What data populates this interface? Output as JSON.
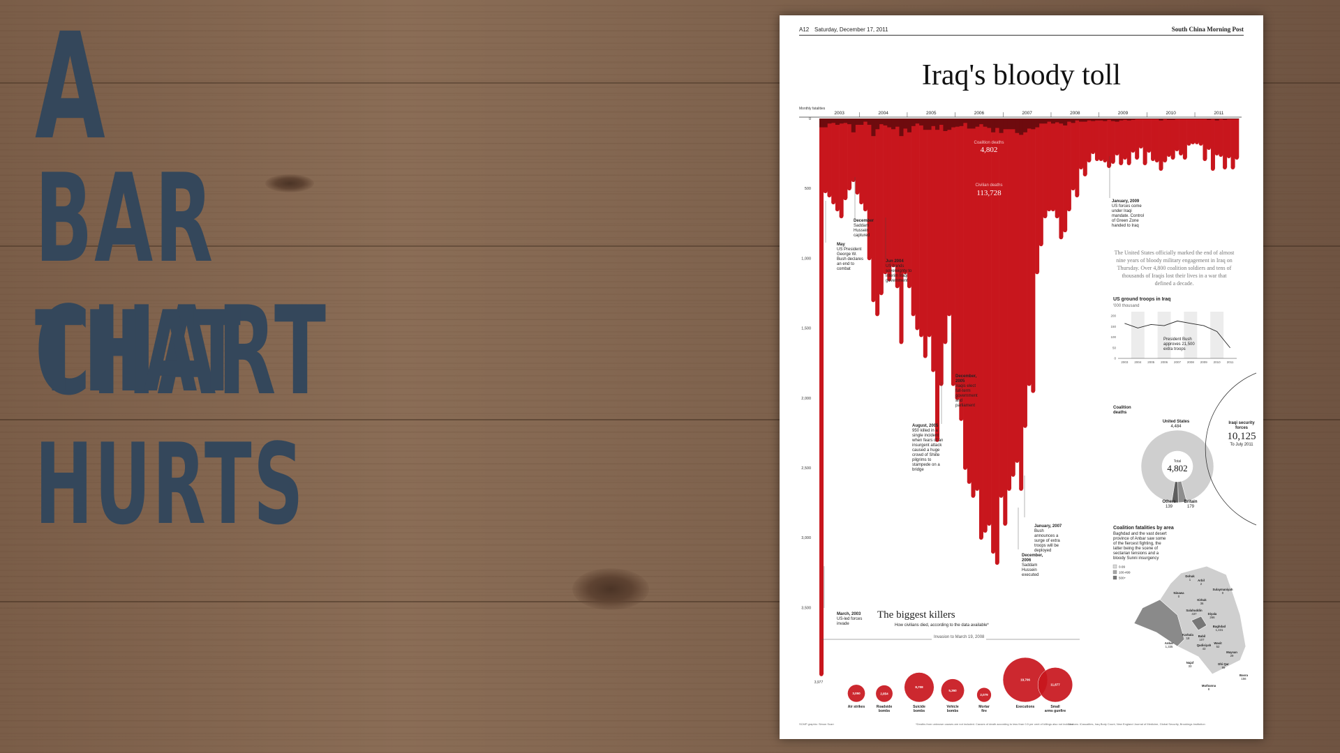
{
  "headline": {
    "lines": [
      "A",
      "Bar Chart",
      "That",
      "Hurts"
    ]
  },
  "newspaper": {
    "page_number": "A12",
    "date": "Saturday, December 17, 2011",
    "publication": "South China Morning Post",
    "title": "Iraq's bloody toll",
    "intro": "The United States officially marked the end of almost nine years of bloody military engagement in Iraq on Thursday. Over 4,800 coalition soldiers and tens of thousands of Iraqis lost their lives in a war that defined a decade.",
    "footer_left": "SCMP graphic: Simon Scarr",
    "footer_mid": "*Deaths from unknown causes are not included. Causes of death according to less than 0.5 per cent of killings also not included.",
    "footer_right": "Sources: iCasualties, Iraq Body Count, New England Journal of Medicine, Global Security, Brookings Institution",
    "colors": {
      "red": "#c8161d",
      "dark_red": "#6e0b0e",
      "background_wood": "#7d614c",
      "headline": "#34475b"
    }
  },
  "chart_data": [
    {
      "type": "bar",
      "title": "Iraq's bloody toll",
      "ylabel": "Monthly fatalities",
      "ylim": [
        0,
        3977
      ],
      "yticks": [
        "0",
        "500",
        "1,000",
        "1,500",
        "2,000",
        "2,500",
        "3,000",
        "3,500"
      ],
      "ytick_values": [
        0,
        500,
        1000,
        1500,
        2000,
        2500,
        3000,
        3500
      ],
      "year_labels": [
        "2003",
        "2004",
        "2005",
        "2006",
        "2007",
        "2008",
        "2009",
        "2010",
        "2011"
      ],
      "series_labels": [
        {
          "name": "Coalition deaths",
          "total": "4,802"
        },
        {
          "name": "Civilian deaths",
          "total": "113,728"
        }
      ],
      "x": [
        "2003-03",
        "2003-04",
        "2003-05",
        "2003-06",
        "2003-07",
        "2003-08",
        "2003-09",
        "2003-10",
        "2003-11",
        "2003-12",
        "2004-01",
        "2004-02",
        "2004-03",
        "2004-04",
        "2004-05",
        "2004-06",
        "2004-07",
        "2004-08",
        "2004-09",
        "2004-10",
        "2004-11",
        "2004-12",
        "2005-01",
        "2005-02",
        "2005-03",
        "2005-04",
        "2005-05",
        "2005-06",
        "2005-07",
        "2005-08",
        "2005-09",
        "2005-10",
        "2005-11",
        "2005-12",
        "2006-01",
        "2006-02",
        "2006-03",
        "2006-04",
        "2006-05",
        "2006-06",
        "2006-07",
        "2006-08",
        "2006-09",
        "2006-10",
        "2006-11",
        "2006-12",
        "2007-01",
        "2007-02",
        "2007-03",
        "2007-04",
        "2007-05",
        "2007-06",
        "2007-07",
        "2007-08",
        "2007-09",
        "2007-10",
        "2007-11",
        "2007-12",
        "2008-01",
        "2008-02",
        "2008-03",
        "2008-04",
        "2008-05",
        "2008-06",
        "2008-07",
        "2008-08",
        "2008-09",
        "2008-10",
        "2008-11",
        "2008-12",
        "2009-01",
        "2009-02",
        "2009-03",
        "2009-04",
        "2009-05",
        "2009-06",
        "2009-07",
        "2009-08",
        "2009-09",
        "2009-10",
        "2009-11",
        "2009-12",
        "2010-01",
        "2010-02",
        "2010-03",
        "2010-04",
        "2010-05",
        "2010-06",
        "2010-07",
        "2010-08",
        "2010-09",
        "2010-10",
        "2010-11",
        "2010-12",
        "2011-01",
        "2011-02",
        "2011-03",
        "2011-04",
        "2011-05",
        "2011-06",
        "2011-07",
        "2011-08",
        "2011-09",
        "2011-10",
        "2011-11"
      ],
      "series": [
        {
          "name": "Civilian deaths",
          "values": [
            3977,
            520,
            550,
            600,
            650,
            700,
            570,
            500,
            440,
            530,
            600,
            650,
            1000,
            1300,
            1400,
            1250,
            1100,
            1150,
            1050,
            1200,
            1600,
            1100,
            1200,
            1400,
            1500,
            1550,
            1700,
            1550,
            1800,
            2300,
            1900,
            1600,
            1400,
            1900,
            2000,
            2150,
            2500,
            2600,
            2700,
            2650,
            3000,
            2950,
            2900,
            3100,
            3180,
            2700,
            2900,
            2650,
            2550,
            2450,
            2650,
            2200,
            1900,
            1950,
            1100,
            900,
            700,
            650,
            650,
            700,
            850,
            800,
            650,
            500,
            550,
            350,
            400,
            300,
            240,
            290,
            290,
            300,
            340,
            310,
            250,
            320,
            280,
            320,
            230,
            280,
            200,
            320,
            230,
            290,
            300,
            360,
            300,
            260,
            280,
            220,
            250,
            280,
            180,
            170,
            170,
            180,
            290,
            210,
            360,
            250,
            260,
            350,
            270,
            350,
            280
          ]
        },
        {
          "name": "Coalition deaths",
          "values": [
            70,
            70,
            40,
            35,
            50,
            40,
            35,
            45,
            110,
            50,
            50,
            25,
            50,
            140,
            85,
            45,
            55,
            70,
            85,
            65,
            140,
            80,
            110,
            60,
            40,
            55,
            90,
            90,
            60,
            90,
            50,
            100,
            90,
            70,
            65,
            60,
            35,
            80,
            80,
            65,
            45,
            65,
            75,
            110,
            75,
            115,
            85,
            85,
            85,
            115,
            130,
            110,
            80,
            85,
            70,
            40,
            40,
            25,
            40,
            30,
            40,
            55,
            25,
            35,
            15,
            25,
            25,
            15,
            20,
            15,
            15,
            20,
            10,
            20,
            25,
            15,
            10,
            15,
            10,
            5,
            5,
            5,
            5,
            5,
            5,
            15,
            5,
            10,
            10,
            5,
            5,
            5,
            5,
            5,
            5,
            5,
            5,
            10,
            5,
            15,
            5,
            10,
            5,
            5,
            5
          ]
        }
      ],
      "annotations": [
        {
          "label": "March, 2003",
          "text": "US-led forces invade",
          "value": "3,977"
        },
        {
          "label": "May",
          "text": "US President George W. Bush declares an end to combat"
        },
        {
          "label": "December",
          "text": "Saddam Hussein captured"
        },
        {
          "label": "Jun 2004",
          "text": "US hands sovereignty to interim Iraqi government"
        },
        {
          "label": "August, 2005",
          "text": "950 killed in a single incident when fears of an insurgent attack caused a huge crowd of Shiite pilgrims to stampede on a bridge"
        },
        {
          "label": "December, 2005",
          "text": "Iraqis elect full-term government and parliament"
        },
        {
          "label": "January, 2007",
          "text": "Bush announces a surge of extra troops will be deployed"
        },
        {
          "label": "December, 2006",
          "text": "Saddam Hussein executed"
        },
        {
          "label": "January, 2009",
          "text": "US forces come under Iraqi mandate. Control of Green Zone handed to Iraq"
        }
      ]
    },
    {
      "type": "line",
      "title": "US ground troops in Iraq",
      "ylabel": "'000 thousand",
      "ylim": [
        0,
        200
      ],
      "yticks": [
        "200",
        "150",
        "100",
        "50",
        "0"
      ],
      "x": [
        "2003",
        "2004",
        "2005",
        "2006",
        "2007",
        "2008",
        "2009",
        "2010",
        "2011"
      ],
      "values": [
        150,
        130,
        145,
        140,
        160,
        150,
        140,
        115,
        45
      ],
      "annotation": "President Bush approves 21,500 extra troops"
    },
    {
      "type": "pie",
      "title": "Coalition deaths",
      "total_label": "Total",
      "total": "4,802",
      "categories": [
        "United States",
        "Britain",
        "Others"
      ],
      "values": [
        4484,
        179,
        139
      ],
      "value_labels": [
        "4,484",
        "179",
        "139"
      ],
      "side_label": {
        "name": "Iraqi security forces",
        "value": "10,125",
        "note": "To July 2011"
      }
    },
    {
      "type": "scatter",
      "title": "The biggest killers",
      "subtitle": "How civilians died, according to the data available*",
      "period_label": "Invasion to March 19, 2008",
      "categories": [
        "Air strikes",
        "Roadside bombs",
        "Suicide bombs",
        "Vehicle bombs",
        "Mortar fire",
        "Executions",
        "Small arms gunfire"
      ],
      "values": [
        3050,
        2854,
        8708,
        5360,
        2079,
        19706,
        11877
      ],
      "value_labels": [
        "3,050",
        "2,854",
        "8,708",
        "5,360",
        "2,079",
        "19,706",
        "11,877"
      ]
    }
  ],
  "map": {
    "title": "Coalition fatalities by area",
    "text": "Baghdad and the vast desert province of Anbar saw some of the fiercest fighting, the latter being the scene of sectarian tensions and a bloody Sunni insurgency",
    "legend": [
      "0-99",
      "100-499",
      "500+"
    ],
    "regions": [
      {
        "name": "Dohuk",
        "value": "1"
      },
      {
        "name": "Ninawa",
        "value": "0"
      },
      {
        "name": "Arbil",
        "value": "2"
      },
      {
        "name": "Kirkuk",
        "value": "36"
      },
      {
        "name": "Sulaymaniyah",
        "value": "0"
      },
      {
        "name": "Salahuddin",
        "value": "437"
      },
      {
        "name": "Diyala",
        "value": "266"
      },
      {
        "name": "Baghdad",
        "value": "1,431"
      },
      {
        "name": "Anbar",
        "value": "1,335"
      },
      {
        "name": "Karbala",
        "value": "18"
      },
      {
        "name": "Babil",
        "value": "107"
      },
      {
        "name": "Wasit",
        "value": "52"
      },
      {
        "name": "Qadisiyah",
        "value": "43"
      },
      {
        "name": "Maysan",
        "value": "29"
      },
      {
        "name": "Najaf",
        "value": "33"
      },
      {
        "name": "Dhi Qar",
        "value": "99"
      },
      {
        "name": "Muthanna",
        "value": "8"
      },
      {
        "name": "Basra",
        "value": "156"
      }
    ]
  }
}
